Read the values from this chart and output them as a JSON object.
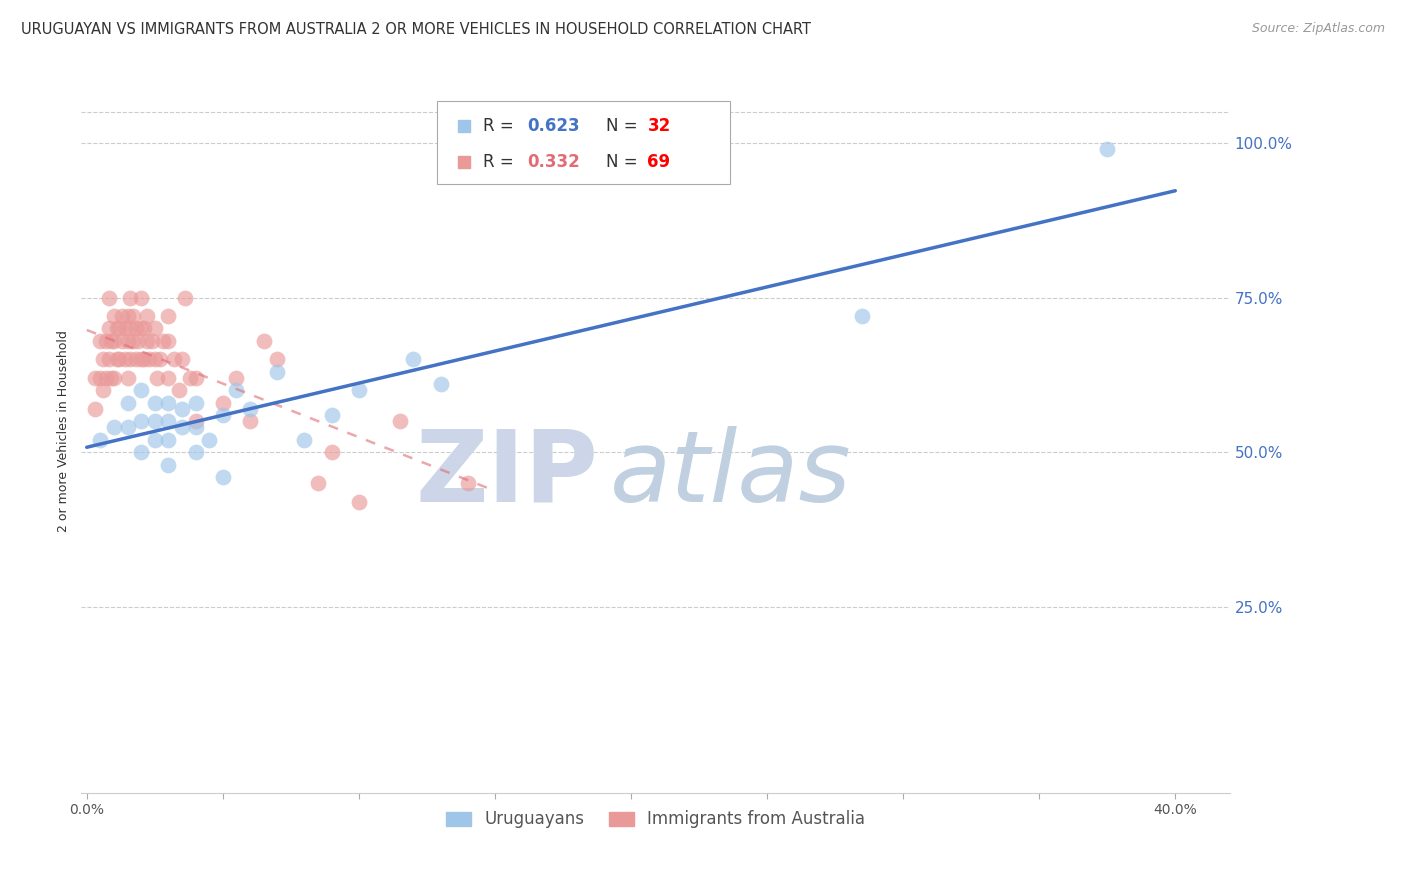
{
  "title": "URUGUAYAN VS IMMIGRANTS FROM AUSTRALIA 2 OR MORE VEHICLES IN HOUSEHOLD CORRELATION CHART",
  "source": "Source: ZipAtlas.com",
  "ylabel": "2 or more Vehicles in Household",
  "right_ytick_labels": [
    "25.0%",
    "50.0%",
    "75.0%",
    "100.0%"
  ],
  "right_ytick_values": [
    0.25,
    0.5,
    0.75,
    1.0
  ],
  "xlim": [
    -0.002,
    0.42
  ],
  "ylim": [
    -0.05,
    1.12
  ],
  "legend_label_blue": "Uruguayans",
  "legend_label_pink": "Immigrants from Australia",
  "blue_color": "#9fc5e8",
  "pink_color": "#ea9999",
  "blue_line_color": "#4472c4",
  "pink_line_color": "#e06c75",
  "r_blue_color": "#4472c4",
  "r_pink_color": "#e06c75",
  "n_color": "#ff0000",
  "watermark_zip_color": "#d0d8e8",
  "watermark_atlas_color": "#c8d8e8",
  "grid_color": "#cccccc",
  "background_color": "#ffffff",
  "title_fontsize": 10.5,
  "axis_label_fontsize": 9,
  "tick_fontsize": 10,
  "legend_fontsize": 12,
  "blue_scatter_x": [
    0.005,
    0.01,
    0.015,
    0.015,
    0.02,
    0.02,
    0.02,
    0.025,
    0.025,
    0.025,
    0.03,
    0.03,
    0.03,
    0.03,
    0.035,
    0.035,
    0.04,
    0.04,
    0.04,
    0.045,
    0.05,
    0.05,
    0.055,
    0.06,
    0.07,
    0.08,
    0.09,
    0.1,
    0.12,
    0.13,
    0.285,
    0.375
  ],
  "blue_scatter_y": [
    0.52,
    0.54,
    0.54,
    0.58,
    0.5,
    0.55,
    0.6,
    0.52,
    0.55,
    0.58,
    0.48,
    0.52,
    0.55,
    0.58,
    0.54,
    0.57,
    0.5,
    0.54,
    0.58,
    0.52,
    0.46,
    0.56,
    0.6,
    0.57,
    0.63,
    0.52,
    0.56,
    0.6,
    0.65,
    0.61,
    0.72,
    0.99
  ],
  "pink_scatter_x": [
    0.003,
    0.003,
    0.005,
    0.005,
    0.006,
    0.006,
    0.007,
    0.007,
    0.008,
    0.008,
    0.008,
    0.009,
    0.009,
    0.01,
    0.01,
    0.01,
    0.011,
    0.011,
    0.012,
    0.012,
    0.013,
    0.013,
    0.014,
    0.014,
    0.015,
    0.015,
    0.015,
    0.016,
    0.016,
    0.016,
    0.017,
    0.017,
    0.018,
    0.018,
    0.019,
    0.02,
    0.02,
    0.02,
    0.021,
    0.021,
    0.022,
    0.022,
    0.023,
    0.024,
    0.025,
    0.025,
    0.026,
    0.027,
    0.028,
    0.03,
    0.03,
    0.03,
    0.032,
    0.034,
    0.035,
    0.036,
    0.038,
    0.04,
    0.04,
    0.05,
    0.055,
    0.06,
    0.065,
    0.07,
    0.085,
    0.09,
    0.1,
    0.115,
    0.14
  ],
  "pink_scatter_y": [
    0.57,
    0.62,
    0.62,
    0.68,
    0.6,
    0.65,
    0.62,
    0.68,
    0.65,
    0.7,
    0.75,
    0.62,
    0.68,
    0.62,
    0.68,
    0.72,
    0.65,
    0.7,
    0.65,
    0.7,
    0.68,
    0.72,
    0.65,
    0.7,
    0.62,
    0.68,
    0.72,
    0.65,
    0.7,
    0.75,
    0.68,
    0.72,
    0.65,
    0.7,
    0.68,
    0.65,
    0.7,
    0.75,
    0.65,
    0.7,
    0.68,
    0.72,
    0.65,
    0.68,
    0.65,
    0.7,
    0.62,
    0.65,
    0.68,
    0.62,
    0.68,
    0.72,
    0.65,
    0.6,
    0.65,
    0.75,
    0.62,
    0.62,
    0.55,
    0.58,
    0.62,
    0.55,
    0.68,
    0.65,
    0.45,
    0.5,
    0.42,
    0.55,
    0.45
  ]
}
